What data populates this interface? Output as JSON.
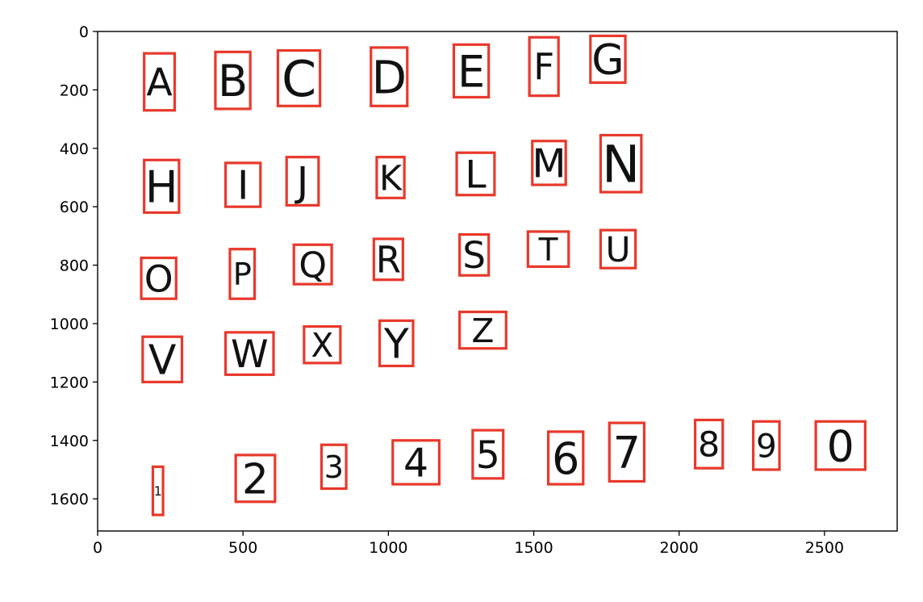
{
  "chart_data": {
    "type": "image-with-bounding-boxes",
    "title": "",
    "xlabel": "",
    "ylabel": "",
    "xlim": [
      0,
      2750
    ],
    "ylim": [
      1710,
      0
    ],
    "y_axis_inverted": true,
    "x_ticks": [
      0,
      500,
      1000,
      1500,
      2000,
      2500
    ],
    "y_ticks": [
      0,
      200,
      400,
      600,
      800,
      1000,
      1200,
      1400,
      1600
    ],
    "box_color": "#e8392b",
    "glyph_color": "#111111",
    "boxes": [
      {
        "char": "A",
        "x0": 160,
        "x1": 265,
        "y0": 75,
        "y1": 270
      },
      {
        "char": "B",
        "x0": 405,
        "x1": 525,
        "y0": 70,
        "y1": 265
      },
      {
        "char": "C",
        "x0": 620,
        "x1": 765,
        "y0": 65,
        "y1": 255
      },
      {
        "char": "D",
        "x0": 940,
        "x1": 1065,
        "y0": 55,
        "y1": 255
      },
      {
        "char": "E",
        "x0": 1225,
        "x1": 1345,
        "y0": 45,
        "y1": 225
      },
      {
        "char": "F",
        "x0": 1485,
        "x1": 1585,
        "y0": 20,
        "y1": 220
      },
      {
        "char": "G",
        "x0": 1695,
        "x1": 1815,
        "y0": 15,
        "y1": 175
      },
      {
        "char": "H",
        "x0": 160,
        "x1": 280,
        "y0": 440,
        "y1": 620
      },
      {
        "char": "I",
        "x0": 440,
        "x1": 560,
        "y0": 450,
        "y1": 600
      },
      {
        "char": "J",
        "x0": 650,
        "x1": 760,
        "y0": 430,
        "y1": 595
      },
      {
        "char": "K",
        "x0": 960,
        "x1": 1055,
        "y0": 430,
        "y1": 570
      },
      {
        "char": "L",
        "x0": 1235,
        "x1": 1365,
        "y0": 415,
        "y1": 560
      },
      {
        "char": "M",
        "x0": 1495,
        "x1": 1610,
        "y0": 375,
        "y1": 525
      },
      {
        "char": "N",
        "x0": 1730,
        "x1": 1870,
        "y0": 355,
        "y1": 550
      },
      {
        "char": "O",
        "x0": 150,
        "x1": 270,
        "y0": 775,
        "y1": 915
      },
      {
        "char": "P",
        "x0": 455,
        "x1": 540,
        "y0": 745,
        "y1": 915
      },
      {
        "char": "Q",
        "x0": 675,
        "x1": 805,
        "y0": 730,
        "y1": 865
      },
      {
        "char": "R",
        "x0": 950,
        "x1": 1050,
        "y0": 710,
        "y1": 850
      },
      {
        "char": "S",
        "x0": 1245,
        "x1": 1345,
        "y0": 695,
        "y1": 835
      },
      {
        "char": "T",
        "x0": 1480,
        "x1": 1620,
        "y0": 685,
        "y1": 805
      },
      {
        "char": "U",
        "x0": 1730,
        "x1": 1850,
        "y0": 680,
        "y1": 810
      },
      {
        "char": "V",
        "x0": 155,
        "x1": 290,
        "y0": 1045,
        "y1": 1200
      },
      {
        "char": "W",
        "x0": 440,
        "x1": 605,
        "y0": 1030,
        "y1": 1175
      },
      {
        "char": "X",
        "x0": 710,
        "x1": 835,
        "y0": 1010,
        "y1": 1135
      },
      {
        "char": "Y",
        "x0": 970,
        "x1": 1085,
        "y0": 990,
        "y1": 1145
      },
      {
        "char": "Z",
        "x0": 1245,
        "x1": 1405,
        "y0": 960,
        "y1": 1085
      },
      {
        "char": "1",
        "x0": 190,
        "x1": 225,
        "y0": 1490,
        "y1": 1655
      },
      {
        "char": "2",
        "x0": 475,
        "x1": 610,
        "y0": 1450,
        "y1": 1610
      },
      {
        "char": "3",
        "x0": 770,
        "x1": 855,
        "y0": 1415,
        "y1": 1565
      },
      {
        "char": "4",
        "x0": 1015,
        "x1": 1175,
        "y0": 1400,
        "y1": 1550
      },
      {
        "char": "5",
        "x0": 1290,
        "x1": 1395,
        "y0": 1365,
        "y1": 1530
      },
      {
        "char": "6",
        "x0": 1550,
        "x1": 1670,
        "y0": 1370,
        "y1": 1550
      },
      {
        "char": "7",
        "x0": 1760,
        "x1": 1880,
        "y0": 1340,
        "y1": 1540
      },
      {
        "char": "8",
        "x0": 2055,
        "x1": 2150,
        "y0": 1330,
        "y1": 1495
      },
      {
        "char": "9",
        "x0": 2255,
        "x1": 2345,
        "y0": 1335,
        "y1": 1500
      },
      {
        "char": "0",
        "x0": 2470,
        "x1": 2640,
        "y0": 1335,
        "y1": 1500
      }
    ]
  }
}
